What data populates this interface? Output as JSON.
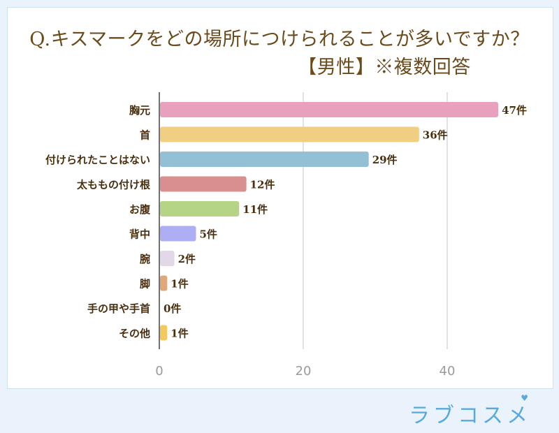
{
  "title_line1": "Q.キスマークをどの場所につけられることが多いですか？",
  "title_line2": "【男性】※複数回答",
  "brand": "ラブコスメ",
  "chart_data": {
    "type": "bar",
    "orientation": "horizontal",
    "categories": [
      "胸元",
      "首",
      "付けられたことはない",
      "太ももの付け根",
      "お腹",
      "背中",
      "腕",
      "脚",
      "手の甲や手首",
      "その他"
    ],
    "values": [
      47,
      36,
      29,
      12,
      11,
      5,
      2,
      1,
      0,
      1
    ],
    "data_labels": [
      "47件",
      "36件",
      "29件",
      "12件",
      "11件",
      "5件",
      "2件",
      "1件",
      "0件",
      "1件"
    ],
    "colors": [
      "#e7a0bd",
      "#f0cf83",
      "#93c0d5",
      "#d98f8f",
      "#b6d486",
      "#aeaef5",
      "#e3d8e8",
      "#e0a878",
      "#e0a878",
      "#f3c85e"
    ],
    "xticks": [
      0,
      20,
      40
    ],
    "xlim": [
      0,
      48
    ],
    "grid": true,
    "legend": "none"
  }
}
